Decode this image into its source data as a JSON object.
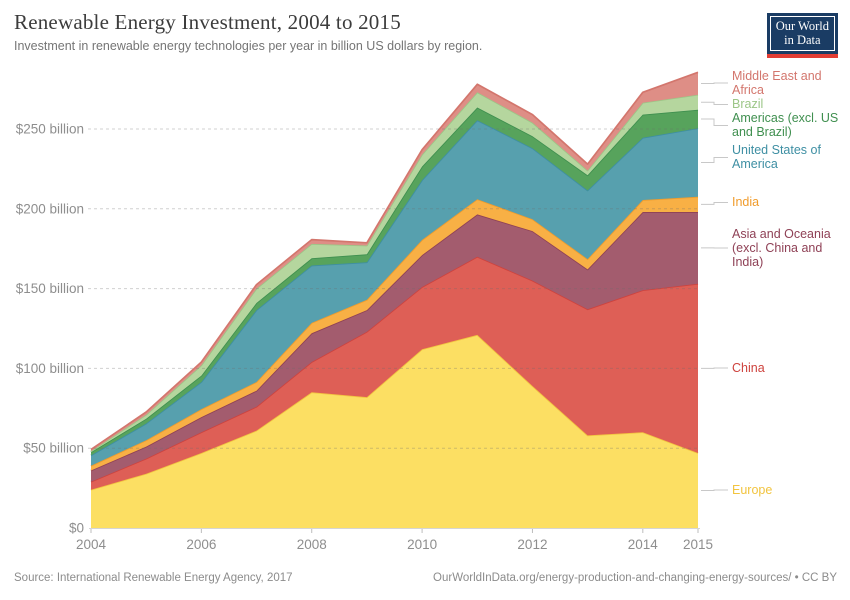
{
  "header": {
    "title": "Renewable Energy Investment, 2004 to 2015",
    "subtitle": "Investment in renewable energy technologies per year in billion US dollars by region."
  },
  "logo": {
    "line1": "Our World",
    "line2": "in Data",
    "bg": "#1a3c64",
    "accent": "#e23d34"
  },
  "chart_data": {
    "type": "area",
    "stacked": true,
    "title": "Renewable Energy Investment, 2004 to 2015",
    "subtitle": "Investment in renewable energy technologies per year in billion US dollars by region.",
    "unit": "billion US dollars",
    "xlabel": "",
    "ylabel": "",
    "grid": true,
    "legend_position": "right",
    "ylim": [
      0,
      250
    ],
    "categories": [
      "2004",
      "2005",
      "2006",
      "2007",
      "2008",
      "2009",
      "2010",
      "2011",
      "2012",
      "2013",
      "2014",
      "2015"
    ],
    "xticks": [
      "2004",
      "2006",
      "2008",
      "2010",
      "2012",
      "2014",
      "2015"
    ],
    "yticks": [
      {
        "v": 0,
        "label": "$0"
      },
      {
        "v": 50,
        "label": "$50 billion"
      },
      {
        "v": 100,
        "label": "$100 billion"
      },
      {
        "v": 150,
        "label": "$150 billion"
      },
      {
        "v": 200,
        "label": "$200 billion"
      },
      {
        "v": 250,
        "label": "$250 billion"
      }
    ],
    "series": [
      {
        "name": "Europe",
        "legend_lines": [
          "Europe"
        ],
        "color": "#F2C43F",
        "fill": "#FCDF63",
        "values": [
          24,
          34,
          47,
          61,
          85,
          82,
          112,
          121,
          89,
          58,
          60,
          47
        ]
      },
      {
        "name": "China",
        "legend_lines": [
          "China"
        ],
        "color": "#CE433E",
        "fill": "#DE5F56",
        "values": [
          5,
          9.5,
          13,
          15,
          19,
          41,
          39,
          49,
          66,
          79,
          89,
          106
        ]
      },
      {
        "name": "Asia and Oceania (excl. China and India)",
        "legend_lines": [
          "Asia and Oceania",
          "(excl. China and",
          "India)"
        ],
        "color": "#8F4156",
        "fill": "#A35C6E",
        "values": [
          7,
          7.5,
          9.5,
          10,
          18,
          13.5,
          20,
          26.5,
          31,
          25,
          49,
          45
        ]
      },
      {
        "name": "India",
        "legend_lines": [
          "India"
        ],
        "color": "#F09C2C",
        "fill": "#F8B045",
        "values": [
          3,
          4,
          5,
          5.5,
          6.5,
          6.5,
          9.5,
          9.5,
          7.5,
          6.5,
          7.5,
          9.5
        ]
      },
      {
        "name": "United States of America",
        "legend_lines": [
          "United States of",
          "America"
        ],
        "color": "#3E8FA3",
        "fill": "#57A0AE",
        "values": [
          6.5,
          10.5,
          17,
          45,
          36,
          23.5,
          37.5,
          49.5,
          44.5,
          43,
          39,
          43
        ]
      },
      {
        "name": "Americas (excl. US and Brazil)",
        "legend_lines": [
          "Americas (excl. US",
          "and Brazil)"
        ],
        "color": "#3F8F4F",
        "fill": "#57A35C",
        "values": [
          2,
          3,
          4,
          4.5,
          4.5,
          5,
          8.5,
          8,
          7.5,
          9.5,
          14.5,
          11.5
        ]
      },
      {
        "name": "Brazil",
        "legend_lines": [
          "Brazil"
        ],
        "color": "#9CC687",
        "fill": "#B5D69E",
        "values": [
          0.7,
          2.5,
          6.5,
          9,
          9,
          5.5,
          7.5,
          9.5,
          8.5,
          3,
          7.5,
          9.5
        ]
      },
      {
        "name": "Middle East and Africa",
        "legend_lines": [
          "Middle East and",
          "Africa"
        ],
        "color": "#D3766D",
        "fill": "#DE8E86",
        "values": [
          1,
          1.7,
          2,
          2.5,
          2.7,
          1.7,
          3,
          5,
          5,
          4,
          6.5,
          14
        ]
      }
    ]
  },
  "footer": {
    "source": "Source: International Renewable Energy Agency, 2017",
    "link": "OurWorldInData.org/energy-production-and-changing-energy-sources/ • CC BY"
  }
}
